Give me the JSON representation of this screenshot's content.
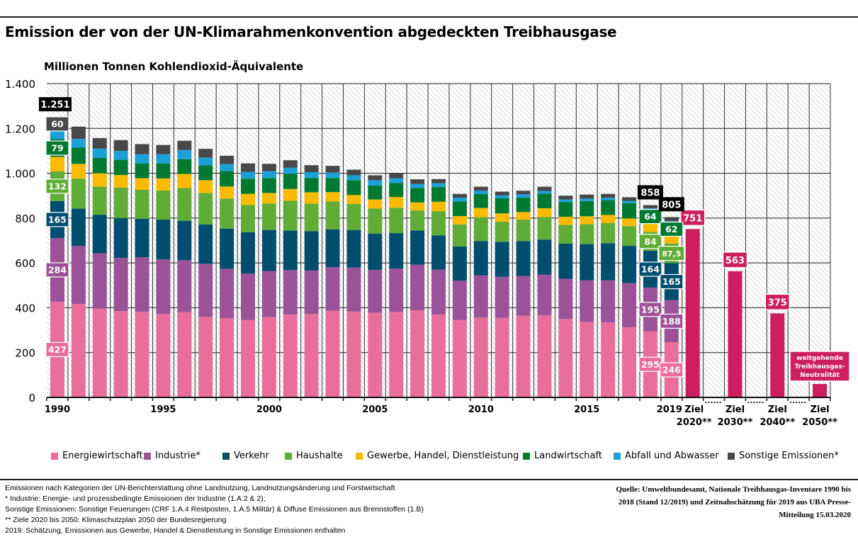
{
  "header": {
    "title": "Emission der von der UN-Klimarahmenkonvention abgedeckten Treibhausgase",
    "subtitle": "Millionen Tonnen Kohlendioxid-Äquivalente"
  },
  "chart_data": {
    "type": "bar",
    "stacked": true,
    "title": "Emission der von der UN-Klimarahmenkonvention abgedeckten Treibhausgase",
    "ylabel": "Millionen Tonnen Kohlendioxid-Äquivalente",
    "ylim": [
      0,
      1400
    ],
    "yticks": [
      {
        "value": 0,
        "label": "0"
      },
      {
        "value": 200,
        "label": "200"
      },
      {
        "value": 400,
        "label": "400"
      },
      {
        "value": 600,
        "label": "600"
      },
      {
        "value": 800,
        "label": "800"
      },
      {
        "value": 1000,
        "label": "1.000"
      },
      {
        "value": 1200,
        "label": "1.200"
      },
      {
        "value": 1400,
        "label": "1.400"
      }
    ],
    "grid": true,
    "legend": "bottom",
    "categories": [
      "1990",
      "1991",
      "1992",
      "1993",
      "1994",
      "1995",
      "1996",
      "1997",
      "1998",
      "1999",
      "2000",
      "2001",
      "2002",
      "2003",
      "2004",
      "2005",
      "2006",
      "2007",
      "2008",
      "2009",
      "2010",
      "2011",
      "2012",
      "2013",
      "2014",
      "2015",
      "2016",
      "2017",
      "2018",
      "2019"
    ],
    "xtick_labels": [
      "1990",
      "1995",
      "2000",
      "2005",
      "2010",
      "2015",
      "2019"
    ],
    "series": [
      {
        "name": "Energiewirtschaft",
        "color": "#e96e9b",
        "values": [
          427,
          417,
          396,
          385,
          382,
          372,
          380,
          359,
          354,
          345,
          358,
          370,
          372,
          386,
          383,
          378,
          381,
          388,
          370,
          345,
          356,
          355,
          365,
          367,
          350,
          337,
          334,
          313,
          295,
          246
        ]
      },
      {
        "name": "Industrie*",
        "color": "#9b5298",
        "values": [
          284,
          259,
          247,
          237,
          243,
          244,
          232,
          237,
          220,
          207,
          206,
          198,
          194,
          195,
          196,
          191,
          194,
          204,
          200,
          176,
          188,
          183,
          177,
          180,
          179,
          186,
          189,
          197,
          195,
          188
        ]
      },
      {
        "name": "Verkehr",
        "color": "#004d6e",
        "values": [
          165,
          166,
          172,
          178,
          172,
          177,
          176,
          176,
          179,
          185,
          183,
          176,
          176,
          169,
          168,
          162,
          158,
          153,
          153,
          152,
          153,
          156,
          155,
          157,
          157,
          161,
          165,
          166,
          164,
          165
        ]
      },
      {
        "name": "Haushalte",
        "color": "#5fac37",
        "values": [
          132,
          134,
          125,
          136,
          129,
          130,
          146,
          140,
          134,
          121,
          118,
          133,
          122,
          124,
          116,
          112,
          113,
          89,
          108,
          99,
          107,
          90,
          96,
          101,
          84,
          89,
          90,
          88,
          84,
          87.5
        ]
      },
      {
        "name": "Gewerbe, Handel, Dienstleistung",
        "color": "#f9bb00",
        "values": [
          65,
          66,
          60,
          56,
          52,
          54,
          63,
          57,
          54,
          50,
          47,
          53,
          51,
          42,
          40,
          40,
          48,
          36,
          42,
          37,
          41,
          37,
          34,
          39,
          36,
          35,
          36,
          34,
          37,
          33
        ]
      },
      {
        "name": "Landwirtschaft",
        "color": "#007a30",
        "values": [
          79,
          72,
          69,
          68,
          66,
          67,
          66,
          66,
          69,
          68,
          67,
          68,
          64,
          63,
          66,
          62,
          63,
          64,
          66,
          65,
          62,
          67,
          64,
          65,
          66,
          68,
          66,
          68,
          64,
          62
        ]
      },
      {
        "name": "Abfall und Abwasser",
        "color": "#1ca0d8",
        "values": [
          38,
          39,
          41,
          40,
          41,
          41,
          41,
          35,
          31,
          30,
          30,
          27,
          26,
          24,
          22,
          24,
          21,
          18,
          17,
          17,
          15,
          13,
          15,
          12,
          11,
          11,
          11,
          11,
          5,
          5
        ]
      },
      {
        "name": "Sonstige Emissionen*",
        "color": "#48484a",
        "values": [
          60,
          55,
          47,
          48,
          45,
          41,
          41,
          39,
          37,
          38,
          33,
          33,
          31,
          30,
          25,
          22,
          21,
          21,
          18,
          17,
          18,
          17,
          16,
          19,
          17,
          18,
          17,
          16,
          14,
          18
        ]
      }
    ],
    "data_labels": [
      {
        "year": "1990",
        "series": 0,
        "text": "427"
      },
      {
        "year": "1990",
        "series": 1,
        "text": "284"
      },
      {
        "year": "1990",
        "series": 2,
        "text": "165"
      },
      {
        "year": "1990",
        "series": 3,
        "text": "132"
      },
      {
        "year": "1990",
        "series": 5,
        "text": "79"
      },
      {
        "year": "1990",
        "series": 7,
        "text": "60"
      },
      {
        "year": "2018",
        "series": 0,
        "text": "295"
      },
      {
        "year": "2018",
        "series": 1,
        "text": "195"
      },
      {
        "year": "2018",
        "series": 2,
        "text": "164"
      },
      {
        "year": "2018",
        "series": 3,
        "text": "84"
      },
      {
        "year": "2018",
        "series": 5,
        "text": "64"
      },
      {
        "year": "2019",
        "series": 0,
        "text": "246"
      },
      {
        "year": "2019",
        "series": 1,
        "text": "188"
      },
      {
        "year": "2019",
        "series": 2,
        "text": "165"
      },
      {
        "year": "2019",
        "series": 3,
        "text": "87,5"
      },
      {
        "year": "2019",
        "series": 5,
        "text": "62"
      }
    ],
    "totals": [
      {
        "year": "1990",
        "value": 1251,
        "text": "1.251"
      },
      {
        "year": "2018",
        "value": 858,
        "text": "858"
      },
      {
        "year": "2019",
        "value": 805,
        "text": "805"
      }
    ],
    "targets": {
      "color": "#cd1f5f",
      "items": [
        {
          "label_lines": [
            "Ziel",
            "2020**"
          ],
          "value": 751,
          "text": "751"
        },
        {
          "label_lines": [
            "Ziel",
            "2030**"
          ],
          "value": 563,
          "text": "563"
        },
        {
          "label_lines": [
            "Ziel",
            "2040**"
          ],
          "value": 375,
          "text": "375"
        },
        {
          "label_lines": [
            "Ziel",
            "2050**"
          ],
          "value": 60,
          "text_lines": [
            "weitgehende",
            "Treibhausgas-",
            "Neutralität"
          ]
        }
      ]
    }
  },
  "footer": {
    "notes": [
      "Emissionen nach Kategorien der UN-Berichterstattung ohne Landnutzung, Landnutzungsänderung und Forstwirtschaft",
      "* Industrie: Energie- und prozessbedingte Emissionen der Industrie (1.A.2 & 2);",
      "Sonstige Emissionen: Sonstige Feuerungen (CRF 1.A.4 Restposten, 1.A.5 Militär) & Diffuse Emissionen aus Brennstoffen (1.B)",
      "** Ziele 2020 bis 2050: Klimaschutzplan 2050 der Bundesregierung",
      "2019: Schätzung, Emissionen aus Gewerbe, Handel & Dienstleistung in Sonstige Emissionen enthalten"
    ],
    "source_lines": [
      "Quelle: Umweltbundesamt, Nationale Treibhausgas-Inventare 1990 bis",
      "2018 (Stand 12/2019) und Zeitnahschätzung für 2019 aus UBA Presse-",
      "Mitteilung 15.03.2020"
    ]
  }
}
